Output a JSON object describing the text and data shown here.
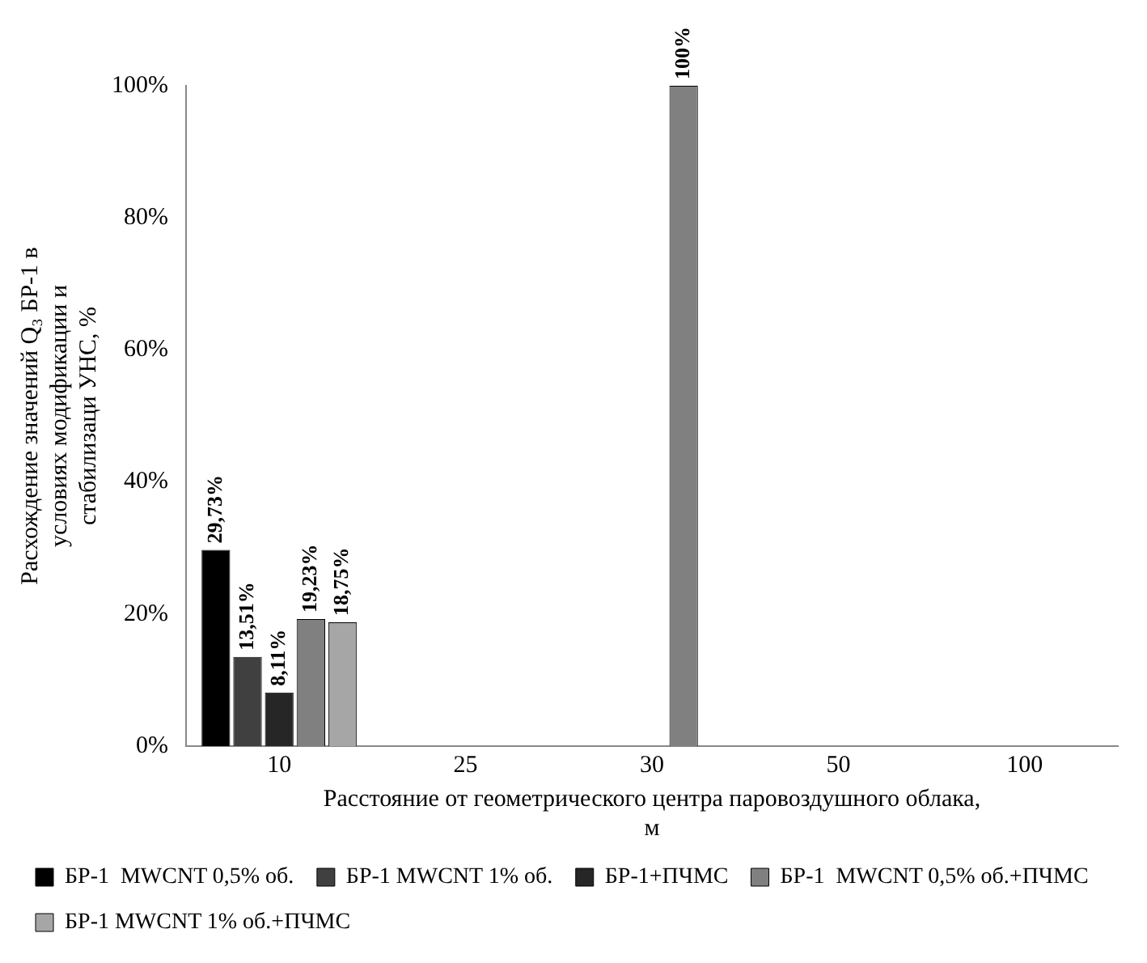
{
  "chart_data": {
    "type": "bar",
    "xlabel": "Расстояние от геометрического центра паровоздушного облака, м",
    "ylabel": "Расхождение значений Q₃ БР-1 в условиях модификации и стабилизаци УНС, %",
    "categories": [
      "10",
      "25",
      "30",
      "50",
      "100"
    ],
    "series": [
      {
        "name": "БР-1  MWCNT 0,5% об.",
        "color": "#000000",
        "values": [
          29.73,
          null,
          null,
          null,
          null
        ],
        "value_labels": [
          "29,73%",
          null,
          null,
          null,
          null
        ]
      },
      {
        "name": "БР-1 MWCNT 1% об.",
        "color": "#404040",
        "values": [
          13.51,
          null,
          null,
          null,
          null
        ],
        "value_labels": [
          "13,51%",
          null,
          null,
          null,
          null
        ]
      },
      {
        "name": "БР-1+ПЧМС",
        "color": "#262626",
        "values": [
          8.11,
          null,
          null,
          null,
          null
        ],
        "value_labels": [
          "8,11%",
          null,
          null,
          null,
          null
        ]
      },
      {
        "name": "БР-1  MWCNT 0,5% об.+ПЧМС",
        "color": "#808080",
        "values": [
          19.23,
          null,
          100,
          null,
          null
        ],
        "value_labels": [
          "19,23%",
          null,
          "100%",
          null,
          null
        ]
      },
      {
        "name": "БР-1 MWCNT 1% об.+ПЧМС",
        "color": "#a6a6a6",
        "values": [
          18.75,
          null,
          null,
          null,
          null
        ],
        "value_labels": [
          "18,75%",
          null,
          null,
          null,
          null
        ]
      }
    ],
    "ylim": [
      0,
      100
    ],
    "yticks": [
      {
        "value": 0,
        "label": "0%"
      },
      {
        "value": 20,
        "label": "20%"
      },
      {
        "value": 40,
        "label": "40%"
      },
      {
        "value": 60,
        "label": "60%"
      },
      {
        "value": 80,
        "label": "80%"
      },
      {
        "value": 100,
        "label": "100%"
      }
    ],
    "grid": false,
    "legend": "bottom"
  }
}
